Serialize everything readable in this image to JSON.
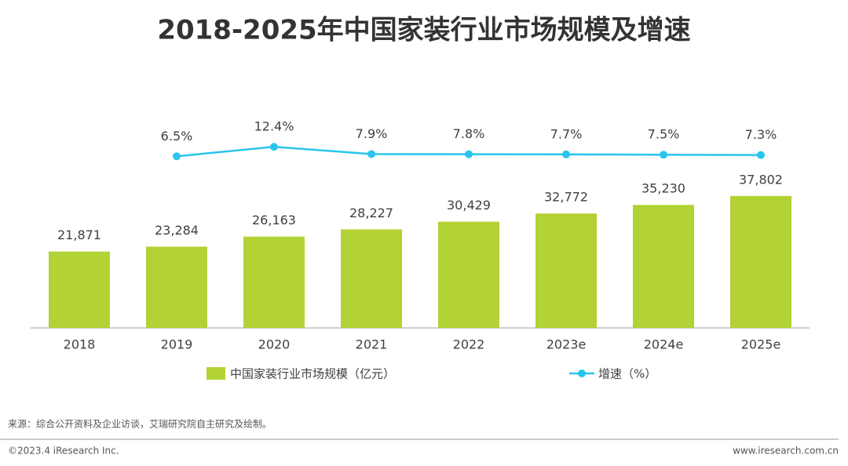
{
  "chart_data": {
    "type": "bar-line",
    "title": "2018-2025年中国家装行业市场规模及增速",
    "categories": [
      "2018",
      "2019",
      "2020",
      "2021",
      "2022",
      "2023e",
      "2024e",
      "2025e"
    ],
    "series": [
      {
        "name": "中国家装行业市场规模（亿元）",
        "type": "bar",
        "color": "#b2d235",
        "values": [
          21871,
          23284,
          26163,
          28227,
          30429,
          32772,
          35230,
          37802
        ],
        "value_labels": [
          "21,871",
          "23,284",
          "26,163",
          "28,227",
          "30,429",
          "32,772",
          "35,230",
          "37,802"
        ]
      },
      {
        "name": "增速（%）",
        "type": "line",
        "axis": "y2",
        "color": "#29c5ec",
        "values": [
          null,
          6.5,
          12.4,
          7.9,
          7.8,
          7.7,
          7.5,
          7.3
        ],
        "value_labels": [
          null,
          "6.5%",
          "12.4%",
          "7.9%",
          "7.8%",
          "7.7%",
          "7.5%",
          "7.3%"
        ]
      }
    ],
    "ylim": [
      0,
      60000
    ],
    "y2lim": [
      -100,
      30
    ],
    "legend": "bottom",
    "source": "来源：综合公开资料及企业访谈，艾瑞研究院自主研究及绘制。",
    "copyright": "©2023.4 iResearch Inc.",
    "website": "www.iresearch.com.cn"
  }
}
